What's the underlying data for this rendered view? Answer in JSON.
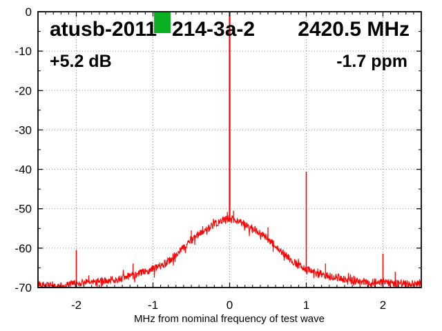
{
  "chart_data": {
    "type": "line",
    "title_left": "atusb-2011",
    "title_right": "214-3a-2",
    "center_frequency_label": "2420.5 MHz",
    "gain_label": "+5.2 dB",
    "ppm_label": "-1.7 ppm",
    "xlabel": "MHz from nominal frequency of test wave",
    "xlim": [
      -2.5,
      2.5
    ],
    "ylim": [
      -70,
      0
    ],
    "x_major_ticks": [
      -2,
      -1,
      0,
      1,
      2
    ],
    "x_minor_step": 0.1,
    "y_major_ticks": [
      0,
      -10,
      -20,
      -30,
      -40,
      -50,
      -60,
      -70
    ],
    "y_minor_step": 5,
    "grid": "dotted",
    "legend": "none",
    "trace_color": "#ff0000",
    "marker_color": "#0cb024",
    "grid_color": "#909090",
    "border_color": "#000000",
    "noise_amplitude_db": 0.95,
    "envelope_points": [
      [
        -2.5,
        -69.0
      ],
      [
        -2.38,
        -69.5
      ],
      [
        -2.28,
        -69.9
      ],
      [
        -2.18,
        -69.7
      ],
      [
        -2.05,
        -69.0
      ],
      [
        -1.95,
        -68.7
      ],
      [
        -1.8,
        -68.6
      ],
      [
        -1.6,
        -68.2
      ],
      [
        -1.45,
        -67.8
      ],
      [
        -1.3,
        -67.0
      ],
      [
        -1.15,
        -66.3
      ],
      [
        -1.0,
        -65.3
      ],
      [
        -0.9,
        -64.5
      ],
      [
        -0.8,
        -63.3
      ],
      [
        -0.7,
        -61.6
      ],
      [
        -0.6,
        -59.7
      ],
      [
        -0.5,
        -57.9
      ],
      [
        -0.4,
        -56.5
      ],
      [
        -0.3,
        -55.2
      ],
      [
        -0.2,
        -54.1
      ],
      [
        -0.1,
        -53.1
      ],
      [
        -0.05,
        -52.6
      ],
      [
        0.0,
        -52.3
      ],
      [
        0.05,
        -52.6
      ],
      [
        0.1,
        -53.0
      ],
      [
        0.2,
        -54.0
      ],
      [
        0.3,
        -55.0
      ],
      [
        0.4,
        -56.3
      ],
      [
        0.5,
        -57.6
      ],
      [
        0.6,
        -59.4
      ],
      [
        0.7,
        -61.2
      ],
      [
        0.8,
        -63.0
      ],
      [
        0.9,
        -64.3
      ],
      [
        1.0,
        -65.3
      ],
      [
        1.15,
        -66.3
      ],
      [
        1.3,
        -67.1
      ],
      [
        1.5,
        -67.9
      ],
      [
        1.7,
        -68.4
      ],
      [
        1.9,
        -68.6
      ],
      [
        2.1,
        -68.8
      ],
      [
        2.3,
        -69.1
      ],
      [
        2.5,
        -69.0
      ]
    ],
    "spikes": [
      {
        "f": -2.0,
        "top": -60.5
      },
      {
        "f": -1.26,
        "top": -63.9
      },
      {
        "f": -0.5,
        "top": -55.5
      },
      {
        "f": -0.03,
        "top": -50.8
      },
      {
        "f": 0.0,
        "top": 0.0,
        "main": true
      },
      {
        "f": 0.05,
        "top": -50.5
      },
      {
        "f": 0.5,
        "top": -54.7
      },
      {
        "f": 1.0,
        "top": -40.6
      },
      {
        "f": 1.25,
        "top": -63.9
      },
      {
        "f": 1.62,
        "top": -67.0
      },
      {
        "f": 2.0,
        "top": -61.4
      },
      {
        "f": 2.16,
        "top": -66.0
      }
    ]
  }
}
